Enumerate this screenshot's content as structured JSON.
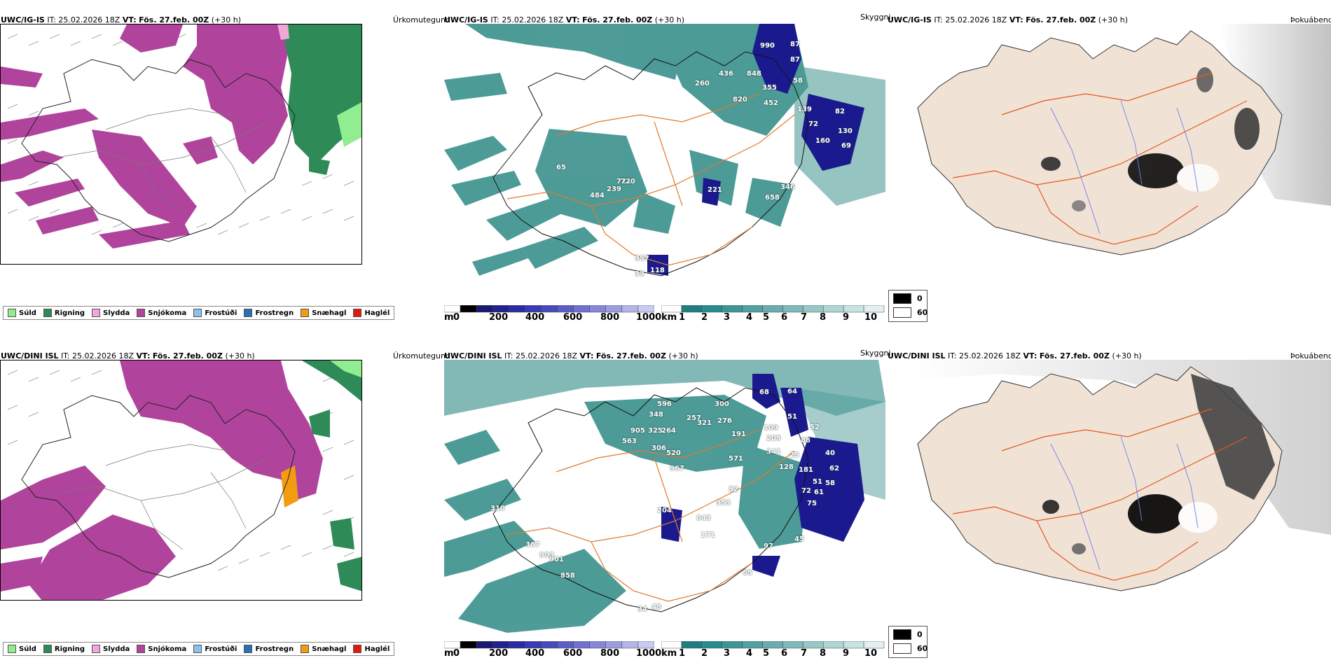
{
  "rows": [
    {
      "header": {
        "model": "UWC/IG-IS",
        "it_label": "IT:",
        "it_value": "25.02.2026 18Z",
        "vt_label": "VT:",
        "vt_value": "Fös. 27.feb. 00Z",
        "lead": "(+30 h)"
      },
      "panel_titles": {
        "precip": "Úrkomutegund",
        "cloud": "Skyggni",
        "cover": "Þokuábendi"
      },
      "cloud_numbers": [
        "990",
        "87",
        "87",
        "436",
        "848",
        "260",
        "355",
        "58",
        "820",
        "452",
        "139",
        "82",
        "72",
        "130",
        "160",
        "69",
        "721",
        "484",
        "239",
        "720",
        "65",
        "221",
        "346",
        "658",
        "357",
        "118",
        "33"
      ]
    },
    {
      "header": {
        "model": "UWC/DINI ISL",
        "it_label": "IT:",
        "it_value": "25.02.2026 18Z",
        "vt_label": "VT:",
        "vt_value": "Fös. 27.feb. 00Z",
        "lead": "(+30 h)"
      },
      "panel_titles": {
        "precip": "Úrkomutegund",
        "cloud": "Skyggni",
        "cover": "Þokuábendi"
      },
      "cloud_numbers": [
        "68",
        "64",
        "596",
        "300",
        "348",
        "257",
        "321",
        "276",
        "51",
        "905",
        "325",
        "264",
        "109",
        "52",
        "563",
        "191",
        "205",
        "306",
        "520",
        "341",
        "25",
        "88",
        "967",
        "571",
        "128",
        "40",
        "181",
        "62",
        "52",
        "51",
        "58",
        "61",
        "72",
        "353",
        "75",
        "310",
        "204",
        "643",
        "171",
        "367",
        "903",
        "901",
        "97",
        "45",
        "858",
        "65",
        "34",
        "48"
      ]
    }
  ],
  "precip_legend": [
    {
      "label": "Súld",
      "color": "#90ee90"
    },
    {
      "label": "Rigning",
      "color": "#2e8b57"
    },
    {
      "label": "Slydda",
      "color": "#f0a8d8"
    },
    {
      "label": "Snjókoma",
      "color": "#b0449c"
    },
    {
      "label": "Frostúði",
      "color": "#8ec0ec"
    },
    {
      "label": "Frostregn",
      "color": "#2a6fb5"
    },
    {
      "label": "Snæhagl",
      "color": "#f39c12"
    },
    {
      "label": "Haglél",
      "color": "#e3170a"
    }
  ],
  "cloudbase_scale": {
    "unit": "m",
    "ticks": [
      "0",
      "200",
      "400",
      "600",
      "800",
      "1000"
    ],
    "colors": [
      "#ffffff",
      "#000000",
      "#1a1a6e",
      "#22228e",
      "#2b2ba5",
      "#3a3ab5",
      "#4a4abf",
      "#5c5cc6",
      "#7070cf",
      "#8686d8",
      "#9c9ce0",
      "#b4b4e8",
      "#cacaf0"
    ]
  },
  "visibility_scale": {
    "unit": "km",
    "ticks": [
      "1",
      "2",
      "3",
      "4",
      "5",
      "6",
      "7",
      "8",
      "9",
      "10"
    ],
    "colors": [
      "#ffffff",
      "#1d7f7f",
      "#2a8b8b",
      "#3d9696",
      "#52a2a2",
      "#68aeae",
      "#7fbaba",
      "#97c7c7",
      "#afd4d4",
      "#c8e2e2",
      "#e3f0f0"
    ]
  },
  "cover_legend": [
    {
      "label": "0",
      "color": "#000000"
    },
    {
      "label": "60",
      "color": "#ffffff"
    }
  ],
  "colors": {
    "land": "#f1e2d6",
    "road": "#e05a1c",
    "river": "#6f7fe8",
    "snow": "#b0449c",
    "rain": "#2e8b57",
    "teal": "#2f8a86",
    "deep": "#1a1a8e"
  }
}
